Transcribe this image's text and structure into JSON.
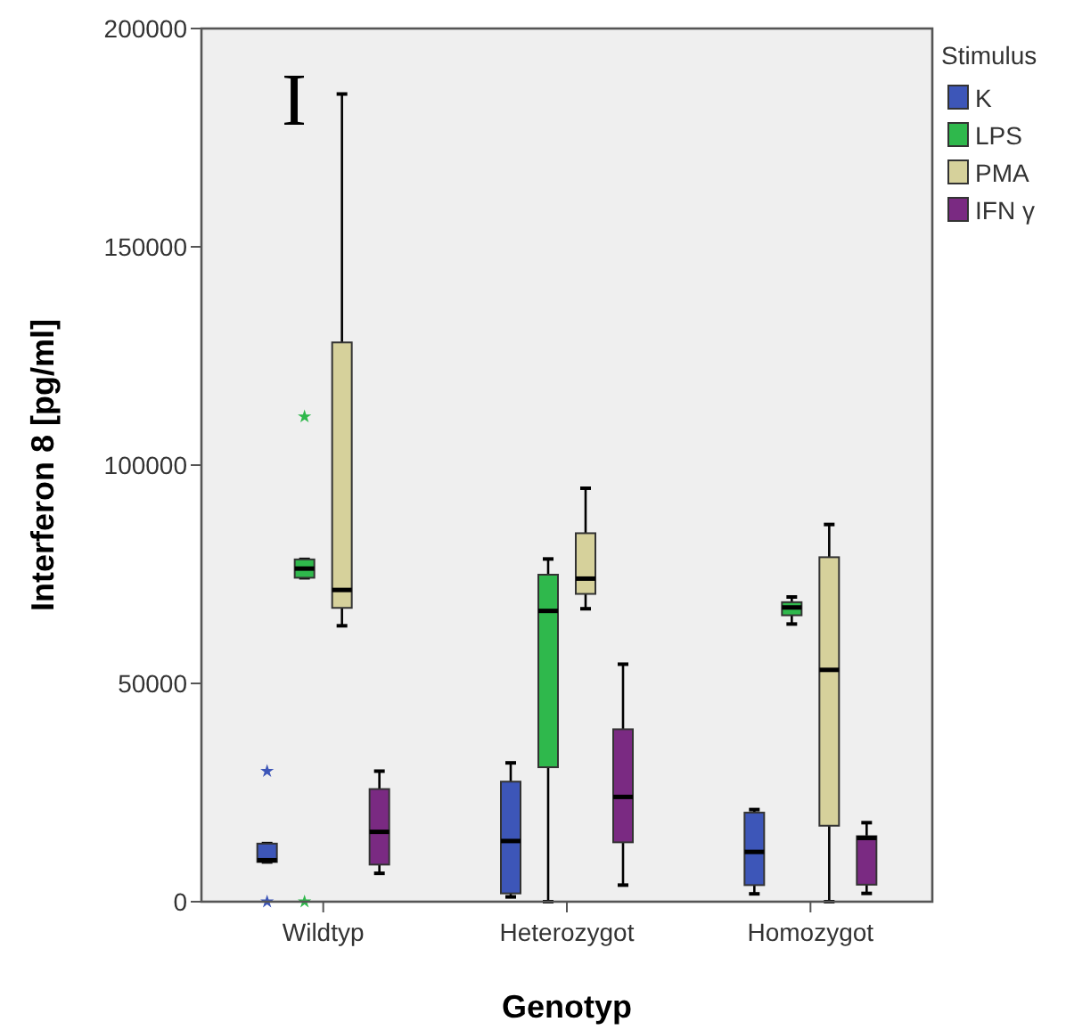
{
  "chart_data": {
    "type": "box",
    "xlabel": "Genotyp",
    "ylabel": "Interferon 8 [pg/ml]",
    "legend_title": "Stimulus",
    "legend": "right",
    "grid": false,
    "annotations": [
      "I"
    ],
    "categories": [
      "Wildtyp",
      "Heterozygot",
      "Homozygot"
    ],
    "ylim": [
      0,
      200000
    ],
    "yticks": [
      0,
      50000,
      100000,
      150000,
      200000
    ],
    "series": [
      {
        "name": "K",
        "color": "#3d56b8",
        "boxes": [
          {
            "low": 9100,
            "q1": 9100,
            "median": 9500,
            "q3": 13300,
            "high": 13300,
            "outliers": [
              0,
              29900
            ]
          },
          {
            "low": 1100,
            "q1": 1900,
            "median": 13900,
            "q3": 27500,
            "high": 31800
          },
          {
            "low": 1800,
            "q1": 3800,
            "median": 11400,
            "q3": 20400,
            "high": 21100
          }
        ]
      },
      {
        "name": "LPS",
        "color": "#2fb84c",
        "boxes": [
          {
            "low": 74200,
            "q1": 74200,
            "median": 76300,
            "q3": 78400,
            "high": 78400,
            "outliers": [
              0,
              111100
            ]
          },
          {
            "low": 0,
            "q1": 30800,
            "median": 66600,
            "q3": 74900,
            "high": 78500
          },
          {
            "low": 63600,
            "q1": 65600,
            "median": 67400,
            "q3": 68600,
            "high": 69800
          }
        ]
      },
      {
        "name": "PMA",
        "color": "#d6d19b",
        "boxes": [
          {
            "low": 63200,
            "q1": 67300,
            "median": 71400,
            "q3": 128100,
            "high": 185000
          },
          {
            "low": 67100,
            "q1": 70500,
            "median": 74000,
            "q3": 84400,
            "high": 94700
          },
          {
            "low": 0,
            "q1": 17400,
            "median": 53100,
            "q3": 78900,
            "high": 86400
          }
        ]
      },
      {
        "name": "IFN γ",
        "color": "#7a2a82",
        "boxes": [
          {
            "low": 6500,
            "q1": 8500,
            "median": 16000,
            "q3": 25800,
            "high": 29900
          },
          {
            "low": 3800,
            "q1": 13600,
            "median": 24000,
            "q3": 39500,
            "high": 54400
          },
          {
            "low": 1900,
            "q1": 3900,
            "median": 14600,
            "q3": 15000,
            "high": 18100
          }
        ]
      }
    ]
  }
}
